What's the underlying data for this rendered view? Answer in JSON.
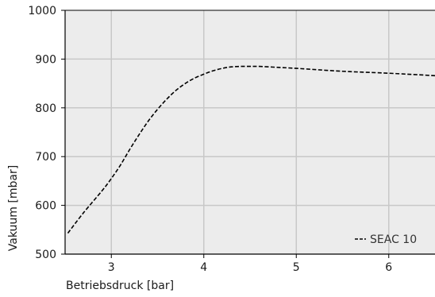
{
  "chart_data": {
    "type": "line",
    "xlabel": "Betriebsdruck [bar]",
    "ylabel": "Vakuum [mbar]",
    "xlim": [
      2.5,
      6.5
    ],
    "ylim": [
      500,
      1000
    ],
    "xticks": [
      3,
      4,
      5,
      6
    ],
    "yticks": [
      500,
      600,
      700,
      800,
      900,
      1000
    ],
    "grid": true,
    "legend_position": "bottom-right",
    "colors": {
      "plot_background": "#ececec",
      "grid": "#c8c8c8",
      "series": "#000000"
    },
    "series": [
      {
        "name": "SEAC 10",
        "style": "dashed",
        "x": [
          2.53,
          2.7,
          2.9,
          3.0,
          3.1,
          3.2,
          3.3,
          3.4,
          3.5,
          3.6,
          3.7,
          3.8,
          3.9,
          4.0,
          4.1,
          4.2,
          4.3,
          4.4,
          4.5,
          4.6,
          4.8,
          5.0,
          5.5,
          6.0,
          6.5
        ],
        "y": [
          543,
          585,
          630,
          655,
          683,
          715,
          745,
          773,
          797,
          818,
          836,
          850,
          861,
          869,
          876,
          881,
          884,
          885,
          885,
          885,
          883,
          881,
          875,
          871,
          866
        ]
      }
    ]
  }
}
